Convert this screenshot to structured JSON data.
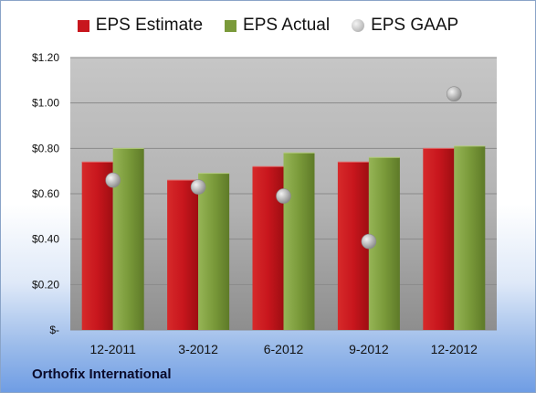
{
  "chart_data": {
    "type": "bar",
    "categories": [
      "12-2011",
      "3-2012",
      "6-2012",
      "9-2012",
      "12-2012"
    ],
    "series": [
      {
        "name": "EPS Estimate",
        "values": [
          0.74,
          0.66,
          0.72,
          0.74,
          0.8
        ],
        "color": "#c8161d",
        "kind": "bar"
      },
      {
        "name": "EPS Actual",
        "values": [
          0.8,
          0.69,
          0.78,
          0.76,
          0.81
        ],
        "color": "#7a9a3a",
        "kind": "bar"
      },
      {
        "name": "EPS GAAP",
        "values": [
          0.66,
          0.63,
          0.59,
          0.39,
          1.04
        ],
        "color": "#b8b8b8",
        "kind": "marker"
      }
    ],
    "y_ticks": [
      "$-",
      "$0.20",
      "$0.40",
      "$0.60",
      "$0.80",
      "$1.00",
      "$1.20"
    ],
    "ylim": [
      0,
      1.2
    ],
    "grid": true,
    "legend": "top"
  },
  "footer": {
    "company": "Orthofix International"
  }
}
